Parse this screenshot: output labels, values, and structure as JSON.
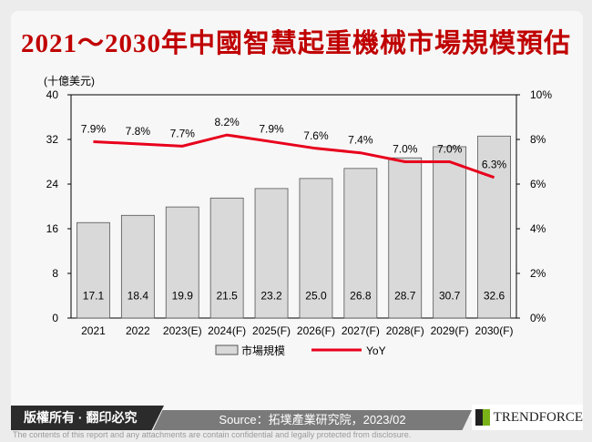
{
  "title": "2021～2030年中國智慧起重機械市場規模預估",
  "footer": {
    "copyright": "版權所有 · 翻印必究",
    "source": "Source：拓墣產業研究院，2023/02",
    "logo": "TRENDFORCE",
    "disclaimer": "The contents of this report and any attachments are contain confidential and legally protected from disclosure."
  },
  "chart_data": {
    "type": "bar+line",
    "categories": [
      "2021",
      "2022",
      "2023(E)",
      "2024(F)",
      "2025(F)",
      "2026(F)",
      "2027(F)",
      "2028(F)",
      "2029(F)",
      "2030(F)"
    ],
    "ylabel": "(十億美元)",
    "ylim": [
      0,
      40
    ],
    "yticks": [
      "0",
      "8",
      "16",
      "24",
      "32",
      "40"
    ],
    "y2lim": [
      0,
      10
    ],
    "y2ticks": [
      "0%",
      "2%",
      "4%",
      "6%",
      "8%",
      "10%"
    ],
    "series": [
      {
        "name": "市場規模",
        "type": "bar",
        "values": [
          17.1,
          18.4,
          19.9,
          21.5,
          23.2,
          25.0,
          26.8,
          28.7,
          30.7,
          32.6
        ],
        "labels": [
          "17.1",
          "18.4",
          "19.9",
          "21.5",
          "23.2",
          "25.0",
          "26.8",
          "28.7",
          "30.7",
          "32.6"
        ],
        "color": "#d9d9d9"
      },
      {
        "name": "YoY",
        "type": "line",
        "axis": "right",
        "values": [
          7.9,
          7.8,
          7.7,
          8.2,
          7.9,
          7.6,
          7.4,
          7.0,
          7.0,
          6.3
        ],
        "labels": [
          "7.9%",
          "7.8%",
          "7.7%",
          "8.2%",
          "7.9%",
          "7.6%",
          "7.4%",
          "7.0%",
          "7.0%",
          "6.3%"
        ],
        "color": "#e8001c"
      }
    ],
    "legend": "bottom",
    "grid": false
  }
}
